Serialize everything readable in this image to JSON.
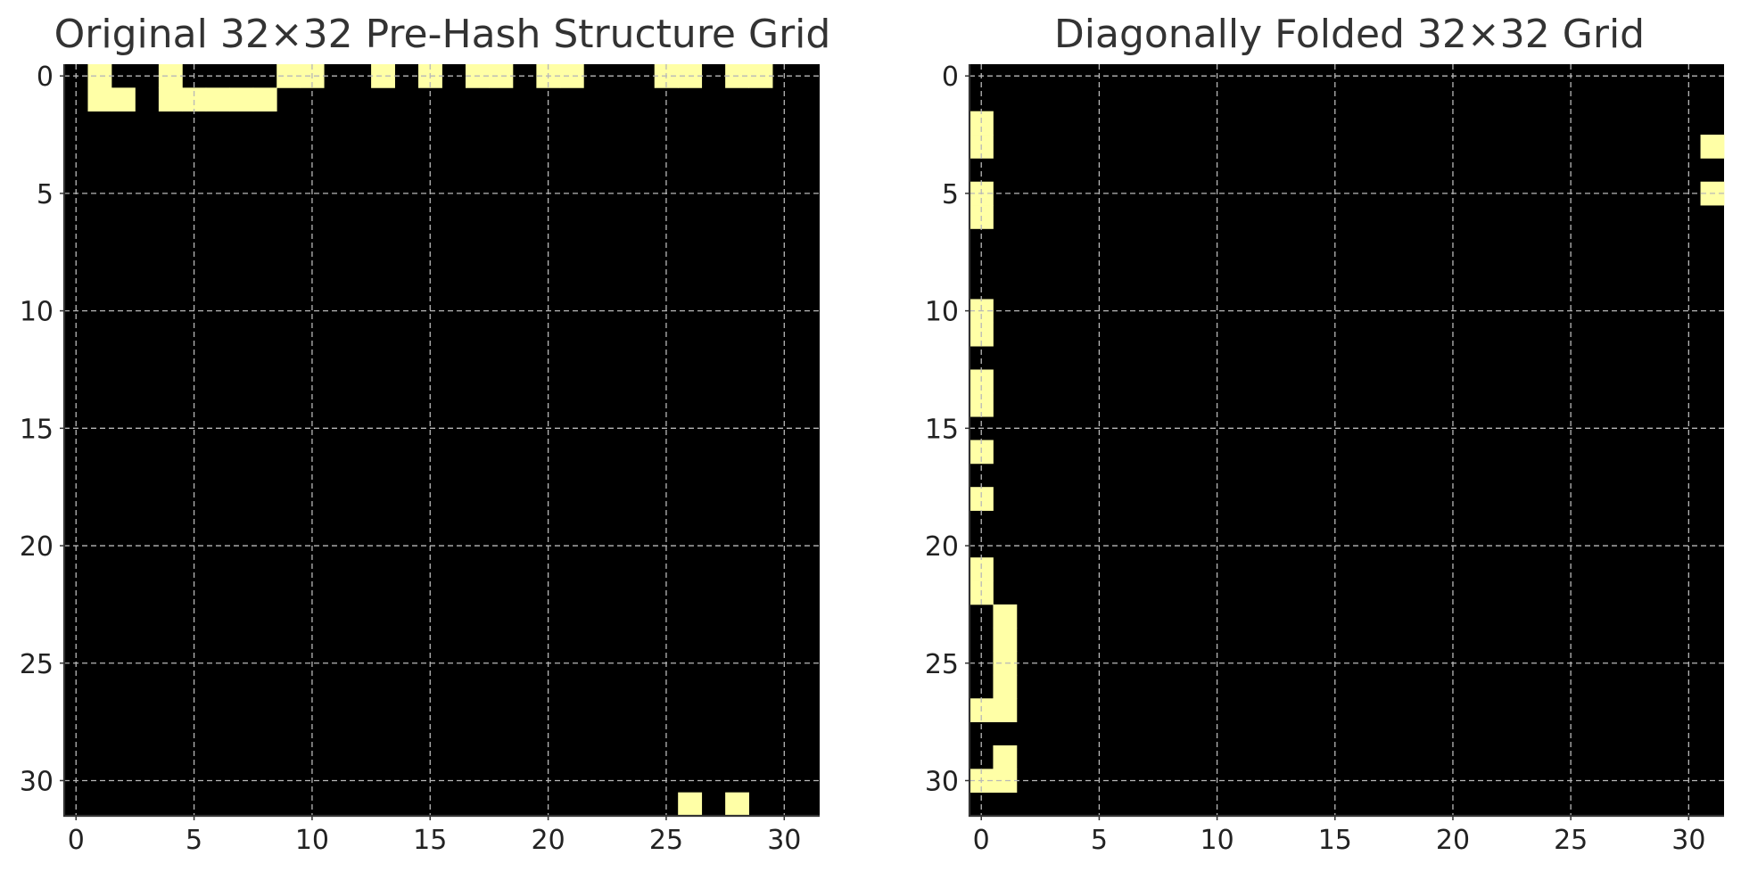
{
  "colors": {
    "on": "#ffffa6",
    "off": "#000000",
    "grid": "#b8b8b8"
  },
  "chart_data": [
    {
      "type": "heatmap",
      "title": "Original 32×32 Pre-Hash Structure Grid",
      "xlabel": "",
      "ylabel": "",
      "rows": 32,
      "cols": 32,
      "xlim": [
        -0.5,
        31.5
      ],
      "ylim": [
        31.5,
        -0.5
      ],
      "xticks": [
        0,
        5,
        10,
        15,
        20,
        25,
        30
      ],
      "yticks": [
        0,
        5,
        10,
        15,
        20,
        25,
        30
      ],
      "grid": true,
      "on_cells": [
        [
          0,
          1
        ],
        [
          1,
          1
        ],
        [
          1,
          2
        ],
        [
          0,
          4
        ],
        [
          1,
          4
        ],
        [
          1,
          5
        ],
        [
          1,
          6
        ],
        [
          1,
          7
        ],
        [
          1,
          8
        ],
        [
          0,
          9
        ],
        [
          0,
          10
        ],
        [
          0,
          13
        ],
        [
          0,
          15
        ],
        [
          0,
          17
        ],
        [
          0,
          18
        ],
        [
          0,
          20
        ],
        [
          0,
          21
        ],
        [
          0,
          25
        ],
        [
          0,
          26
        ],
        [
          0,
          28
        ],
        [
          0,
          29
        ],
        [
          31,
          26
        ],
        [
          31,
          28
        ]
      ]
    },
    {
      "type": "heatmap",
      "title": "Diagonally Folded 32×32 Grid",
      "xlabel": "",
      "ylabel": "",
      "rows": 32,
      "cols": 32,
      "xlim": [
        -0.5,
        31.5
      ],
      "ylim": [
        31.5,
        -0.5
      ],
      "xticks": [
        0,
        5,
        10,
        15,
        20,
        25,
        30
      ],
      "yticks": [
        0,
        5,
        10,
        15,
        20,
        25,
        30
      ],
      "grid": true,
      "on_cells": [
        [
          2,
          0
        ],
        [
          3,
          0
        ],
        [
          5,
          0
        ],
        [
          6,
          0
        ],
        [
          10,
          0
        ],
        [
          11,
          0
        ],
        [
          13,
          0
        ],
        [
          14,
          0
        ],
        [
          16,
          0
        ],
        [
          18,
          0
        ],
        [
          21,
          0
        ],
        [
          22,
          0
        ],
        [
          23,
          1
        ],
        [
          24,
          1
        ],
        [
          25,
          1
        ],
        [
          26,
          1
        ],
        [
          27,
          1
        ],
        [
          27,
          0
        ],
        [
          29,
          1
        ],
        [
          30,
          1
        ],
        [
          30,
          0
        ],
        [
          3,
          31
        ],
        [
          5,
          31
        ]
      ]
    }
  ]
}
